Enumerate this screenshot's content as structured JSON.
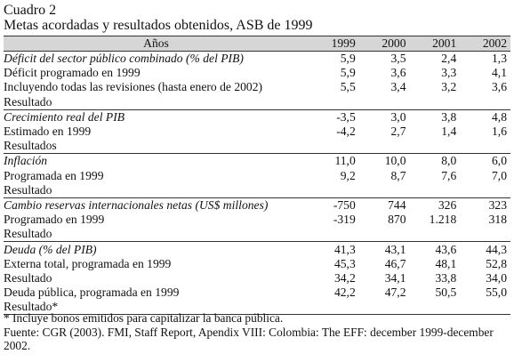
{
  "caption": {
    "line1": "Cuadro 2",
    "line2": "Metas acordadas y resultados obtenidos, ASB de 1999"
  },
  "table": {
    "header": {
      "label": "Años",
      "years": [
        "1999",
        "2000",
        "2001",
        "2002"
      ]
    },
    "rows": [
      {
        "label": "Déficit del sector público combinado (% del PIB)",
        "values": [
          "5,9",
          "3,5",
          "2,4",
          "1,3"
        ]
      },
      {
        "label": "Déficit programado en 1999",
        "values": [
          "5,9",
          "3,6",
          "3,3",
          "4,1"
        ]
      },
      {
        "label": "Incluyendo todas las revisiones (hasta enero de 2002)",
        "values": [
          "5,5",
          "3,4",
          "3,2",
          "3,6"
        ]
      },
      {
        "label": "Resultado",
        "values": [
          "",
          "",
          "",
          ""
        ]
      },
      {
        "label": "Crecimiento real del PIB",
        "values": [
          "-3,5",
          "3,0",
          "3,8",
          "4,8"
        ]
      },
      {
        "label": "Estimado en 1999",
        "values": [
          "-4,2",
          "2,7",
          "1,4",
          "1,6"
        ]
      },
      {
        "label": "Resultados",
        "values": [
          "",
          "",
          "",
          ""
        ]
      },
      {
        "label": "Inflación",
        "values": [
          "11,0",
          "10,0",
          "8,0",
          "6,0"
        ]
      },
      {
        "label": "Programada en 1999",
        "values": [
          "9,2",
          "8,7",
          "7,6",
          "7,0"
        ]
      },
      {
        "label": "Resultado",
        "values": [
          "",
          "",
          "",
          ""
        ]
      },
      {
        "label": "Cambio reservas internacionales netas (US$ millones)",
        "values": [
          "-750",
          "744",
          "326",
          "323"
        ]
      },
      {
        "label": "Programado en 1999",
        "values": [
          "-319",
          "870",
          "1.218",
          "318"
        ]
      },
      {
        "label": "Resultado",
        "values": [
          "",
          "",
          "",
          ""
        ]
      },
      {
        "label": "Deuda (% del PIB)",
        "values": [
          "41,3",
          "43,1",
          "43,6",
          "44,3"
        ]
      },
      {
        "label": "Externa total, programada en 1999",
        "values": [
          "45,3",
          "46,7",
          "48,1",
          "52,8"
        ]
      },
      {
        "label": "Resultado",
        "values": [
          "34,2",
          "34,1",
          "33,8",
          "34,0"
        ]
      },
      {
        "label": "Deuda pública, programada en 1999",
        "values": [
          "42,2",
          "47,2",
          "50,5",
          "55,0"
        ]
      },
      {
        "label": "Resultado*",
        "values": [
          "",
          "",
          "",
          ""
        ]
      }
    ]
  },
  "notes": {
    "footnote": "* Incluye bonos emitidos para capitalizar la banca pública.",
    "source": "Fuente: CGR (2003). FMI, Staff Report, Apendix VIII: Colombia: The EFF: december 1999-december 2002."
  }
}
